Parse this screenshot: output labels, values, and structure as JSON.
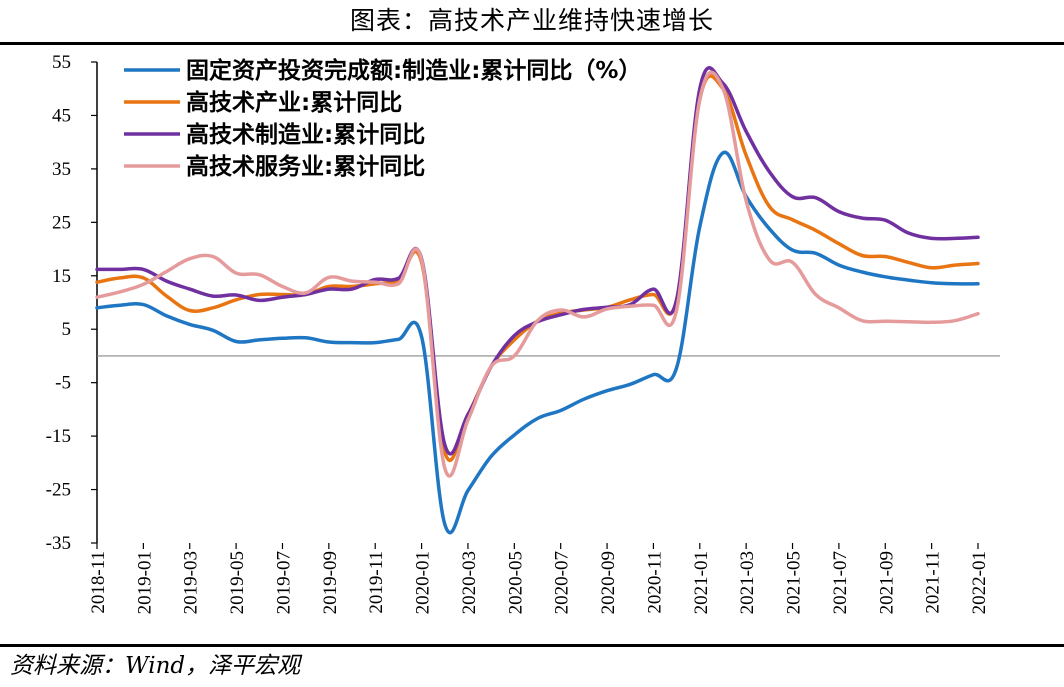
{
  "title": "图表：高技术产业维持快速增长",
  "source": "资料来源：Wind，泽平宏观",
  "chart_data": {
    "type": "line",
    "title": "图表：高技术产业维持快速增长",
    "xlabel": "",
    "ylabel": "",
    "ylim": [
      -35,
      55
    ],
    "yticks": [
      55,
      45,
      35,
      25,
      15,
      5,
      -5,
      -15,
      -25,
      -35
    ],
    "x": [
      "2018-11",
      "2018-12",
      "2019-01",
      "2019-02",
      "2019-03",
      "2019-04",
      "2019-05",
      "2019-06",
      "2019-07",
      "2019-08",
      "2019-09",
      "2019-10",
      "2019-11",
      "2019-12",
      "2020-01",
      "2020-02",
      "2020-03",
      "2020-04",
      "2020-05",
      "2020-06",
      "2020-07",
      "2020-08",
      "2020-09",
      "2020-10",
      "2020-11",
      "2020-12",
      "2021-01",
      "2021-02",
      "2021-03",
      "2021-04",
      "2021-05",
      "2021-06",
      "2021-07",
      "2021-08",
      "2021-09",
      "2021-10",
      "2021-11",
      "2021-12",
      "2022-01"
    ],
    "xtick_labels": [
      "2018-11",
      "2019-01",
      "2019-03",
      "2019-05",
      "2019-07",
      "2019-09",
      "2019-11",
      "2020-01",
      "2020-03",
      "2020-05",
      "2020-07",
      "2020-09",
      "2020-11",
      "2021-01",
      "2021-03",
      "2021-05",
      "2021-07",
      "2021-09",
      "2021-11",
      "2022-01"
    ],
    "grid": false,
    "legend_position": "top-left",
    "series": [
      {
        "name": "固定资产投资完成额:制造业:累计同比（%）",
        "color": "#1f77c4",
        "values": [
          9.0,
          9.5,
          9.6,
          7.5,
          5.9,
          4.8,
          2.7,
          3.0,
          3.3,
          3.4,
          2.6,
          2.5,
          2.5,
          3.1,
          3.6,
          -31.5,
          -25.2,
          -18.8,
          -14.8,
          -11.7,
          -10.2,
          -8.1,
          -6.5,
          -5.3,
          -3.5,
          -2.2,
          24.2,
          38.0,
          29.8,
          23.8,
          19.8,
          19.2,
          17.0,
          15.7,
          14.8,
          14.2,
          13.7,
          13.5,
          13.5
        ]
      },
      {
        "name": "高技术产业:累计同比",
        "color": "#e87511",
        "values": [
          13.8,
          14.6,
          14.6,
          11.2,
          8.5,
          9.0,
          10.5,
          11.5,
          11.5,
          11.5,
          13.0,
          13.0,
          13.5,
          14.2,
          17.5,
          -18.0,
          -11.0,
          -2.0,
          3.0,
          6.5,
          8.0,
          8.6,
          9.1,
          10.5,
          11.5,
          10.5,
          48.0,
          50.0,
          37.5,
          28.0,
          25.5,
          23.5,
          21.0,
          18.8,
          18.6,
          17.5,
          16.5,
          17.0,
          17.3
        ]
      },
      {
        "name": "高技术制造业:累计同比",
        "color": "#7030a0",
        "values": [
          16.2,
          16.2,
          16.2,
          14.0,
          12.5,
          11.2,
          11.4,
          10.4,
          11.0,
          11.5,
          12.5,
          12.5,
          14.3,
          14.5,
          18.2,
          -16.6,
          -11.0,
          -2.0,
          3.8,
          6.4,
          7.7,
          8.7,
          9.1,
          9.6,
          12.5,
          10.5,
          50.0,
          51.0,
          42.0,
          34.5,
          29.8,
          29.6,
          27.0,
          25.8,
          25.4,
          23.0,
          22.0,
          22.0,
          22.2
        ]
      },
      {
        "name": "高技术服务业:累计同比",
        "color": "#e59b9b",
        "values": [
          11.0,
          12.0,
          13.4,
          15.8,
          18.2,
          18.6,
          15.5,
          15.2,
          13.0,
          11.8,
          14.7,
          14.0,
          13.8,
          13.5,
          18.0,
          -21.0,
          -12.0,
          -2.0,
          0.0,
          6.6,
          8.6,
          7.3,
          8.8,
          9.3,
          9.5,
          8.6,
          48.0,
          50.0,
          29.0,
          18.0,
          17.5,
          11.5,
          9.0,
          6.6,
          6.5,
          6.4,
          6.3,
          6.6,
          7.9
        ]
      }
    ]
  }
}
